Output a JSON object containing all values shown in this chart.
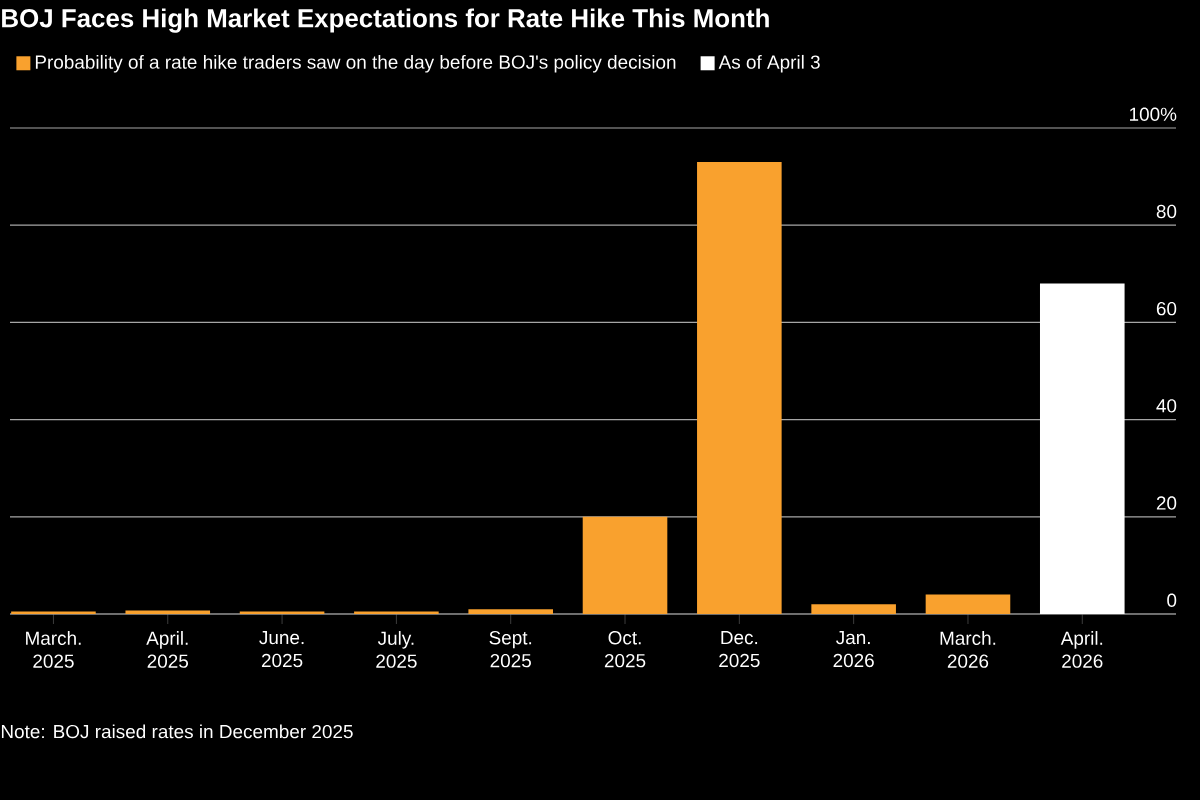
{
  "chart_data": {
    "type": "bar",
    "title": "BOJ Faces High Market Expectations for Rate Hike This Month",
    "categories": [
      "March. 2025",
      "April. 2025",
      "June. 2025",
      "July. 2025",
      "Sept. 2025",
      "Oct. 2025",
      "Dec. 2025",
      "Jan. 2026",
      "March. 2026",
      "April. 2026"
    ],
    "series": [
      {
        "name": "Probability of a rate hike traders saw on the day before BOJ's policy decision",
        "color": "#f9a12e",
        "values": [
          0.5,
          0.7,
          0.5,
          0.5,
          1,
          20,
          93,
          2,
          4,
          null
        ]
      },
      {
        "name": "As of April 3",
        "color": "#ffffff",
        "values": [
          null,
          null,
          null,
          null,
          null,
          null,
          null,
          null,
          null,
          68
        ]
      }
    ],
    "ylim": [
      0,
      100
    ],
    "yticks": [
      0,
      20,
      40,
      60,
      80,
      {
        "value": 100,
        "label": "100%"
      }
    ],
    "grid": "y",
    "legend": "top left",
    "annotations": [
      "Note: BOJ raised rates in December 2025"
    ]
  }
}
